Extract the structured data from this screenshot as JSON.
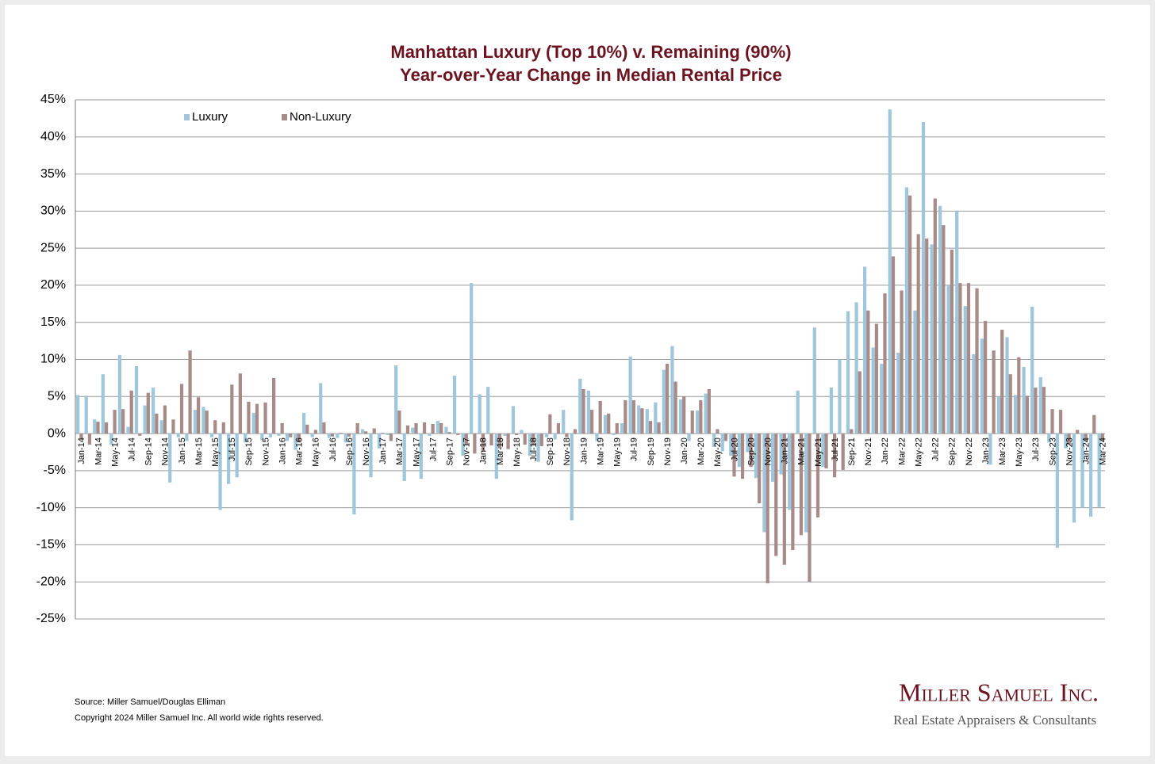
{
  "chart_data": {
    "type": "bar",
    "title": "Manhattan Luxury (Top 10%) v. Remaining (90%)",
    "subtitle": "Year-over-Year Change in Median Rental Price",
    "source": "Source: Miller Samuel/Douglas Elliman",
    "copyright": "Copyright 2024 Miller Samuel Inc.  All world wide rights reserved.",
    "brand": "Miller Samuel Inc.",
    "brand_tagline": "Real Estate Appraisers & Consultants",
    "legend": "upper left",
    "grid": true,
    "ylim": [
      -25,
      45
    ],
    "yticks": [
      {
        "value": -25,
        "label": "-25%"
      },
      {
        "value": -20,
        "label": "-20%"
      },
      {
        "value": -15,
        "label": "-15%"
      },
      {
        "value": -10,
        "label": "-10%"
      },
      {
        "value": -5,
        "label": "-5%"
      },
      {
        "value": 0,
        "label": "0%"
      },
      {
        "value": 5,
        "label": "5%"
      },
      {
        "value": 10,
        "label": "10%"
      },
      {
        "value": 15,
        "label": "15%"
      },
      {
        "value": 20,
        "label": "20%"
      },
      {
        "value": 25,
        "label": "25%"
      },
      {
        "value": 30,
        "label": "30%"
      },
      {
        "value": 35,
        "label": "35%"
      },
      {
        "value": 40,
        "label": "40%"
      },
      {
        "value": 45,
        "label": "45%"
      }
    ],
    "categories": [
      "Jan-14",
      null,
      "Mar-14",
      null,
      "May-14",
      null,
      "Jul-14",
      null,
      "Sep-14",
      null,
      "Nov-14",
      null,
      "Jan-15",
      null,
      "Mar-15",
      null,
      "May-15",
      null,
      "Jul-15",
      null,
      "Sep-15",
      null,
      "Nov-15",
      null,
      "Jan-16",
      null,
      "Mar-16",
      null,
      "May-16",
      null,
      "Jul-16",
      null,
      "Sep-16",
      null,
      "Nov-16",
      null,
      "Jan-17",
      null,
      "Mar-17",
      null,
      "May-17",
      null,
      "Jul-17",
      null,
      "Sep-17",
      null,
      "Nov-17",
      null,
      "Jan-18",
      null,
      "Mar-18",
      null,
      "May-18",
      null,
      "Jul-18",
      null,
      "Sep-18",
      null,
      "Nov-18",
      null,
      "Jan-19",
      null,
      "Mar-19",
      null,
      "May-19",
      null,
      "Jul-19",
      null,
      "Sep-19",
      null,
      "Nov-19",
      null,
      "Jan-20",
      null,
      "Mar-20",
      null,
      "May-20",
      null,
      "Jul-20",
      null,
      "Sep-20",
      null,
      "Nov-20",
      null,
      "Jan-21",
      null,
      "Mar-21",
      null,
      "May-21",
      null,
      "Jul-21",
      null,
      "Sep-21",
      null,
      "Nov-21",
      null,
      "Jan-22",
      null,
      "Mar-22",
      null,
      "May-22",
      null,
      "Jul-22",
      null,
      "Sep-22",
      null,
      "Nov-22",
      null,
      "Jan-23",
      null,
      "Mar-23",
      null,
      "May-23",
      null,
      "Jul-23",
      null,
      "Sep-23",
      null,
      "Nov-23",
      null,
      "Jan-24",
      null,
      "Mar-24"
    ],
    "series": [
      {
        "name": "Luxury",
        "color": "#9fc6da",
        "values": [
          5.2,
          5.1,
          1.9,
          8.0,
          -1.5,
          10.6,
          0.9,
          9.1,
          3.8,
          6.2,
          1.8,
          -6.6,
          -0.5,
          -1.0,
          3.2,
          3.6,
          -0.5,
          -10.3,
          -6.8,
          -5.9,
          -1.2,
          2.8,
          -0.9,
          -0.5,
          -0.3,
          -1.0,
          -2.2,
          2.8,
          -0.5,
          6.8,
          -0.6,
          -0.6,
          -1.2,
          -10.9,
          0.6,
          -5.9,
          -2.0,
          -0.2,
          9.2,
          -6.4,
          0.8,
          -6.1,
          -0.3,
          1.7,
          0.9,
          7.8,
          -3.0,
          20.3,
          5.3,
          6.3,
          -6.1,
          -0.3,
          3.7,
          0.5,
          -3.0,
          -3.8,
          -0.5,
          -0.8,
          3.2,
          -11.7,
          7.4,
          5.8,
          -1.0,
          2.5,
          -0.2,
          1.4,
          10.4,
          3.8,
          3.3,
          4.2,
          8.6,
          11.8,
          4.6,
          -1.0,
          3.1,
          5.4,
          -1.8,
          -2.4,
          -3.0,
          -4.5,
          -2.5,
          -6.0,
          -13.3,
          -6.5,
          -5.5,
          -10.3,
          5.8,
          -13.3,
          14.3,
          -4.5,
          6.2,
          10.0,
          16.5,
          17.7,
          22.5,
          11.6,
          9.4,
          43.7,
          10.9,
          33.2,
          16.6,
          42.0,
          25.5,
          30.7,
          20.0,
          30.0,
          17.2,
          10.7,
          12.8,
          -4.2,
          5.0,
          13.0,
          5.2,
          9.0,
          17.1,
          7.6,
          -1.2,
          -15.4,
          -2.0,
          -12.0,
          -10.0,
          -11.2,
          -9.9
        ]
      },
      {
        "name": "Non-Luxury",
        "color": "#a68b89",
        "values": [
          -0.8,
          -1.5,
          1.6,
          1.5,
          3.2,
          3.3,
          5.8,
          -0.3,
          5.5,
          2.7,
          3.8,
          1.9,
          6.7,
          11.2,
          4.9,
          3.1,
          1.8,
          1.5,
          6.6,
          8.1,
          4.3,
          4.0,
          4.2,
          7.5,
          1.4,
          -0.5,
          -1.2,
          1.2,
          0.5,
          1.5,
          -0.4,
          0.1,
          -0.4,
          1.4,
          0.3,
          0.7,
          0.1,
          -1.0,
          3.1,
          1.1,
          1.4,
          1.5,
          1.3,
          1.4,
          0.2,
          -0.2,
          -1.5,
          -2.7,
          -2.4,
          -1.6,
          -2.0,
          -2.1,
          -0.2,
          -1.5,
          -1.6,
          -1.7,
          2.6,
          1.4,
          -0.5,
          0.6,
          6.0,
          3.2,
          4.4,
          2.7,
          1.4,
          4.5,
          4.5,
          3.4,
          1.7,
          1.5,
          9.4,
          7.0,
          5.0,
          3.1,
          4.5,
          6.0,
          0.6,
          -1.0,
          -5.8,
          -6.1,
          -4.5,
          -9.4,
          -20.2,
          -16.5,
          -17.7,
          -15.7,
          -13.7,
          -20.0,
          -11.3,
          -4.7,
          -5.9,
          -4.9,
          0.6,
          8.4,
          16.6,
          14.8,
          18.9,
          23.9,
          19.3,
          32.1,
          26.9,
          26.3,
          31.7,
          28.1,
          24.8,
          20.3,
          20.3,
          19.6,
          15.2,
          11.2,
          14.0,
          8.0,
          10.3,
          5.1,
          6.2,
          6.3,
          3.3,
          3.2,
          -1.5,
          0.5,
          -1.0,
          2.5,
          -1.0
        ]
      }
    ]
  }
}
